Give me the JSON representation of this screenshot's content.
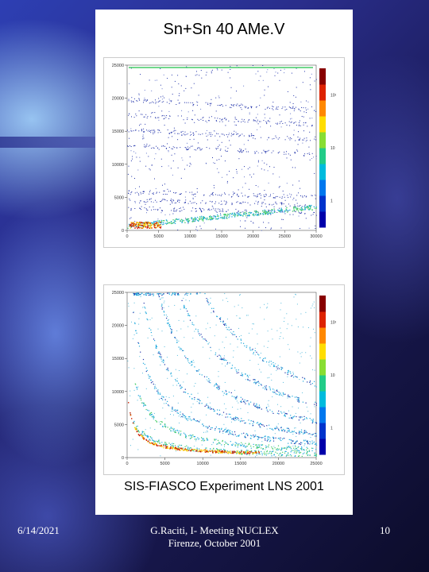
{
  "slide": {
    "title": "Sn+Sn 40 AMe.V",
    "caption": "SIS-FIASCO Experiment LNS 2001"
  },
  "footer": {
    "date": "6/14/2021",
    "center": "G.Raciti, I- Meeting NUCLEX Firenze, October 2001",
    "page": "10"
  },
  "chart_data": [
    {
      "type": "heatmap",
      "title": "",
      "xlabel": "",
      "ylabel": "",
      "xlim": [
        0,
        30000
      ],
      "ylim": [
        0,
        25000
      ],
      "x_ticks": [
        "0",
        "5000",
        "10000",
        "15000",
        "20000",
        "25000",
        "30000"
      ],
      "y_ticks": [
        "0",
        "5000",
        "10000",
        "15000",
        "20000",
        "25000"
      ],
      "colorbar_ticks": [
        "1",
        "10",
        "10²"
      ]
    },
    {
      "type": "heatmap",
      "title": "",
      "xlabel": "",
      "ylabel": "",
      "xlim": [
        0,
        25000
      ],
      "ylim": [
        0,
        25000
      ],
      "x_ticks": [
        "0",
        "5000",
        "10000",
        "15000",
        "20000",
        "25000"
      ],
      "y_ticks": [
        "0",
        "5000",
        "10000",
        "15000",
        "20000",
        "25000"
      ],
      "colorbar_ticks": [
        "1",
        "10",
        "10²"
      ]
    }
  ],
  "colors": {
    "point_low": "#2233aa",
    "point_mid": "#22aadd",
    "point_high": "#44cc66",
    "band_hot": "#ffcc00",
    "band_core": "#cc2200"
  }
}
